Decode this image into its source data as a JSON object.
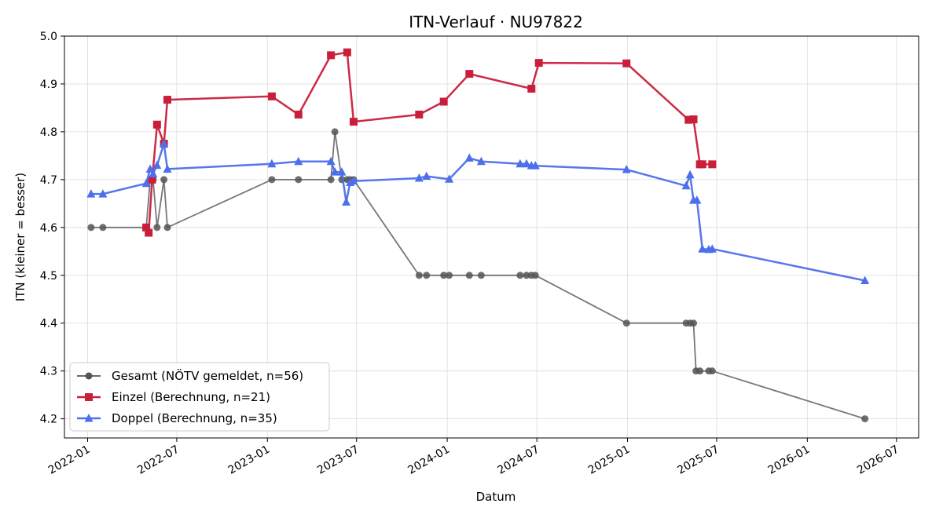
{
  "chart_data": {
    "type": "line",
    "title": "ITN-Verlauf · NU97822",
    "xlabel": "Datum",
    "ylabel": "ITN  (kleiner = besser)",
    "xlim": [
      "2021-11-15",
      "2026-08-15"
    ],
    "ylim": [
      4.16,
      5.0
    ],
    "x_ticks": [
      {
        "date": "2022-01-01",
        "label": "2022-01"
      },
      {
        "date": "2022-07-01",
        "label": "2022-07"
      },
      {
        "date": "2023-01-01",
        "label": "2023-01"
      },
      {
        "date": "2023-07-01",
        "label": "2023-07"
      },
      {
        "date": "2024-01-01",
        "label": "2024-01"
      },
      {
        "date": "2024-07-01",
        "label": "2024-07"
      },
      {
        "date": "2025-01-01",
        "label": "2025-01"
      },
      {
        "date": "2025-07-01",
        "label": "2025-07"
      },
      {
        "date": "2026-01-01",
        "label": "2026-01"
      },
      {
        "date": "2026-07-01",
        "label": "2026-07"
      }
    ],
    "y_ticks": [
      4.2,
      4.3,
      4.4,
      4.5,
      4.6,
      4.7,
      4.8,
      4.9,
      5.0
    ],
    "y_tick_labels": [
      "4.2",
      "4.3",
      "4.4",
      "4.5",
      "4.6",
      "4.7",
      "4.8",
      "4.9",
      "5.0"
    ],
    "grid": true,
    "legend_position": "bottom-left",
    "series": [
      {
        "name": "Gesamt (NÖTV gemeldet, n=56)",
        "color": "#555555",
        "marker": "circle",
        "points": [
          [
            "2022-01-08",
            4.6
          ],
          [
            "2022-02-01",
            4.6
          ],
          [
            "2022-04-30",
            4.6
          ],
          [
            "2022-05-08",
            4.7
          ],
          [
            "2022-05-14",
            4.7
          ],
          [
            "2022-05-22",
            4.6
          ],
          [
            "2022-06-05",
            4.7
          ],
          [
            "2022-06-12",
            4.6
          ],
          [
            "2023-01-10",
            4.7
          ],
          [
            "2023-03-05",
            4.7
          ],
          [
            "2023-05-10",
            4.7
          ],
          [
            "2023-05-18",
            4.8
          ],
          [
            "2023-06-01",
            4.7
          ],
          [
            "2023-06-12",
            4.7
          ],
          [
            "2023-06-18",
            4.7
          ],
          [
            "2023-06-25",
            4.7
          ],
          [
            "2023-11-05",
            4.5
          ],
          [
            "2023-11-20",
            4.5
          ],
          [
            "2023-12-25",
            4.5
          ],
          [
            "2024-01-05",
            4.5
          ],
          [
            "2024-02-15",
            4.5
          ],
          [
            "2024-03-10",
            4.5
          ],
          [
            "2024-05-28",
            4.5
          ],
          [
            "2024-06-10",
            4.5
          ],
          [
            "2024-06-20",
            4.5
          ],
          [
            "2024-06-28",
            4.5
          ],
          [
            "2024-12-30",
            4.4
          ],
          [
            "2025-04-30",
            4.4
          ],
          [
            "2025-05-08",
            4.4
          ],
          [
            "2025-05-15",
            4.4
          ],
          [
            "2025-05-20",
            4.3
          ],
          [
            "2025-05-28",
            4.3
          ],
          [
            "2025-06-15",
            4.3
          ],
          [
            "2025-06-22",
            4.3
          ],
          [
            "2026-04-28",
            4.2
          ]
        ]
      },
      {
        "name": "Einzel (Berechnung, n=21)",
        "color": "#C91F3B",
        "marker": "square",
        "points": [
          [
            "2022-04-30",
            4.6
          ],
          [
            "2022-05-05",
            4.589
          ],
          [
            "2022-05-12",
            4.7
          ],
          [
            "2022-05-22",
            4.815
          ],
          [
            "2022-06-05",
            4.775
          ],
          [
            "2022-06-12",
            4.867
          ],
          [
            "2023-01-10",
            4.874
          ],
          [
            "2023-03-05",
            4.836
          ],
          [
            "2023-05-10",
            4.96
          ],
          [
            "2023-06-12",
            4.966
          ],
          [
            "2023-06-25",
            4.821
          ],
          [
            "2023-11-05",
            4.836
          ],
          [
            "2023-12-25",
            4.863
          ],
          [
            "2024-02-15",
            4.921
          ],
          [
            "2024-06-20",
            4.89
          ],
          [
            "2024-07-05",
            4.944
          ],
          [
            "2024-12-30",
            4.943
          ],
          [
            "2025-05-05",
            4.825
          ],
          [
            "2025-05-15",
            4.826
          ],
          [
            "2025-05-28",
            4.732
          ],
          [
            "2025-06-02",
            4.732
          ],
          [
            "2025-06-22",
            4.732
          ]
        ]
      },
      {
        "name": "Doppel (Berechnung, n=35)",
        "color": "#4D6FEB",
        "marker": "triangle",
        "points": [
          [
            "2022-01-08",
            4.67
          ],
          [
            "2022-02-01",
            4.67
          ],
          [
            "2022-04-30",
            4.692
          ],
          [
            "2022-05-08",
            4.722
          ],
          [
            "2022-05-14",
            4.712
          ],
          [
            "2022-05-22",
            4.73
          ],
          [
            "2022-06-05",
            4.775
          ],
          [
            "2022-06-12",
            4.722
          ],
          [
            "2023-01-10",
            4.733
          ],
          [
            "2023-03-05",
            4.738
          ],
          [
            "2023-05-10",
            4.738
          ],
          [
            "2023-05-18",
            4.716
          ],
          [
            "2023-06-01",
            4.716
          ],
          [
            "2023-06-10",
            4.653
          ],
          [
            "2023-06-18",
            4.694
          ],
          [
            "2023-06-25",
            4.697
          ],
          [
            "2023-11-05",
            4.703
          ],
          [
            "2023-11-20",
            4.707
          ],
          [
            "2024-01-05",
            4.701
          ],
          [
            "2024-02-15",
            4.745
          ],
          [
            "2024-03-10",
            4.738
          ],
          [
            "2024-05-28",
            4.733
          ],
          [
            "2024-06-10",
            4.733
          ],
          [
            "2024-06-20",
            4.729
          ],
          [
            "2024-06-28",
            4.729
          ],
          [
            "2024-12-30",
            4.721
          ],
          [
            "2025-04-30",
            4.687
          ],
          [
            "2025-05-08",
            4.71
          ],
          [
            "2025-05-15",
            4.657
          ],
          [
            "2025-05-22",
            4.657
          ],
          [
            "2025-06-02",
            4.555
          ],
          [
            "2025-06-15",
            4.554
          ],
          [
            "2025-06-22",
            4.555
          ],
          [
            "2026-04-28",
            4.489
          ]
        ]
      }
    ]
  }
}
